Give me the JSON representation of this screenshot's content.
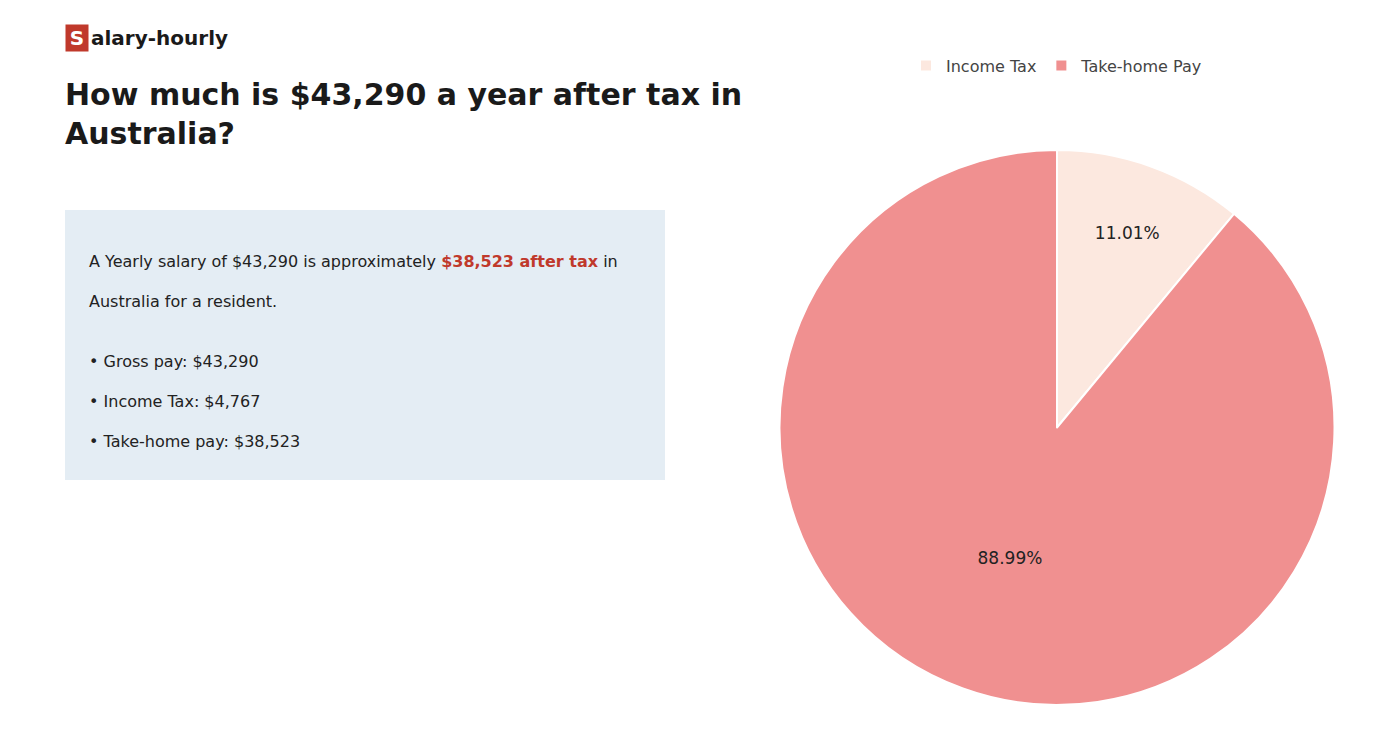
{
  "chart_data": {
    "type": "pie",
    "title": [
      "How much is $43,290 a year after tax in",
      "Australia?"
    ],
    "annotations": [
      [
        {
          "text": "S",
          "color": "#c0392b"
        },
        {
          "text": "alary-hourly"
        }
      ],
      [
        {
          "text": "A Yearly salary of $43,290 is approximately "
        },
        {
          "text": "$38,523 after tax",
          "color": "#c0392b"
        },
        {
          "text": " in"
        }
      ],
      [
        {
          "text": "Australia for a resident."
        }
      ],
      [
        {
          "text": "• Gross pay: $43,290"
        }
      ],
      [
        {
          "text": "• Income Tax: $4,767"
        }
      ],
      [
        {
          "text": "• Take-home pay: $38,523"
        }
      ]
    ],
    "categories": [
      "Income Tax",
      "Take-home Pay"
    ],
    "values": [
      11.01,
      88.99
    ],
    "value_labels": [
      "11.01%",
      "88.99%"
    ],
    "colors": [
      "#fce8df",
      "#f09090"
    ],
    "data_labels": true,
    "legend": "top"
  }
}
